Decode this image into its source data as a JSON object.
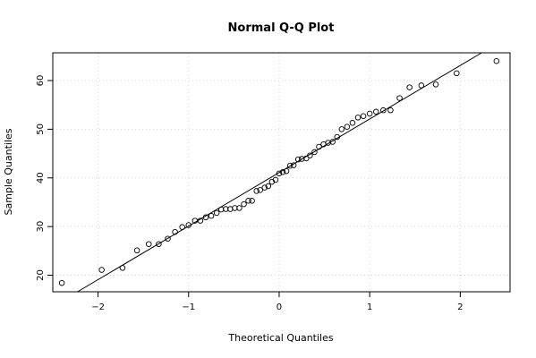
{
  "chart_data": {
    "type": "scatter",
    "title": "Normal Q-Q Plot",
    "xlabel": "Theoretical Quantiles",
    "ylabel": "Sample Quantiles",
    "xlim": [
      -2.5,
      2.55
    ],
    "ylim": [
      16.6,
      65.7
    ],
    "xticks": [
      -2,
      -1,
      0,
      1,
      2
    ],
    "yticks": [
      20,
      30,
      40,
      50,
      60
    ],
    "xtick_labels": [
      "−2",
      "−1",
      "0",
      "1",
      "2"
    ],
    "ytick_labels": [
      "20",
      "30",
      "40",
      "50",
      "60"
    ],
    "grid": true,
    "grid_style": "dotted",
    "marker": "open-circle",
    "points": [
      {
        "x": -2.4,
        "y": 18.4
      },
      {
        "x": -1.96,
        "y": 21.1
      },
      {
        "x": -1.73,
        "y": 21.5
      },
      {
        "x": -1.57,
        "y": 25.1
      },
      {
        "x": -1.44,
        "y": 26.4
      },
      {
        "x": -1.33,
        "y": 26.4
      },
      {
        "x": -1.23,
        "y": 27.5
      },
      {
        "x": -1.15,
        "y": 28.9
      },
      {
        "x": -1.07,
        "y": 29.9
      },
      {
        "x": -1.0,
        "y": 30.3
      },
      {
        "x": -0.93,
        "y": 31.2
      },
      {
        "x": -0.87,
        "y": 31.2
      },
      {
        "x": -0.81,
        "y": 31.9
      },
      {
        "x": -0.75,
        "y": 32.2
      },
      {
        "x": -0.69,
        "y": 32.8
      },
      {
        "x": -0.64,
        "y": 33.5
      },
      {
        "x": -0.59,
        "y": 33.6
      },
      {
        "x": -0.54,
        "y": 33.6
      },
      {
        "x": -0.49,
        "y": 33.8
      },
      {
        "x": -0.44,
        "y": 33.8
      },
      {
        "x": -0.39,
        "y": 34.6
      },
      {
        "x": -0.34,
        "y": 35.3
      },
      {
        "x": -0.3,
        "y": 35.3
      },
      {
        "x": -0.25,
        "y": 37.3
      },
      {
        "x": -0.21,
        "y": 37.5
      },
      {
        "x": -0.16,
        "y": 38.0
      },
      {
        "x": -0.12,
        "y": 38.3
      },
      {
        "x": -0.08,
        "y": 39.2
      },
      {
        "x": -0.04,
        "y": 39.6
      },
      {
        "x": 0.0,
        "y": 40.9
      },
      {
        "x": 0.04,
        "y": 41.2
      },
      {
        "x": 0.08,
        "y": 41.4
      },
      {
        "x": 0.12,
        "y": 42.5
      },
      {
        "x": 0.16,
        "y": 42.6
      },
      {
        "x": 0.21,
        "y": 43.8
      },
      {
        "x": 0.25,
        "y": 43.9
      },
      {
        "x": 0.3,
        "y": 44.0
      },
      {
        "x": 0.34,
        "y": 44.6
      },
      {
        "x": 0.39,
        "y": 45.3
      },
      {
        "x": 0.44,
        "y": 46.4
      },
      {
        "x": 0.49,
        "y": 46.9
      },
      {
        "x": 0.54,
        "y": 47.2
      },
      {
        "x": 0.59,
        "y": 47.4
      },
      {
        "x": 0.64,
        "y": 48.4
      },
      {
        "x": 0.69,
        "y": 50.0
      },
      {
        "x": 0.75,
        "y": 50.5
      },
      {
        "x": 0.81,
        "y": 51.3
      },
      {
        "x": 0.87,
        "y": 52.4
      },
      {
        "x": 0.93,
        "y": 52.7
      },
      {
        "x": 1.0,
        "y": 53.2
      },
      {
        "x": 1.07,
        "y": 53.6
      },
      {
        "x": 1.15,
        "y": 53.9
      },
      {
        "x": 1.23,
        "y": 53.9
      },
      {
        "x": 1.33,
        "y": 56.4
      },
      {
        "x": 1.44,
        "y": 58.6
      },
      {
        "x": 1.57,
        "y": 59.0
      },
      {
        "x": 1.73,
        "y": 59.2
      },
      {
        "x": 1.96,
        "y": 61.5
      },
      {
        "x": 2.4,
        "y": 64.0
      }
    ],
    "reference_line": {
      "intercept": 41.1,
      "slope": 11.0
    }
  }
}
